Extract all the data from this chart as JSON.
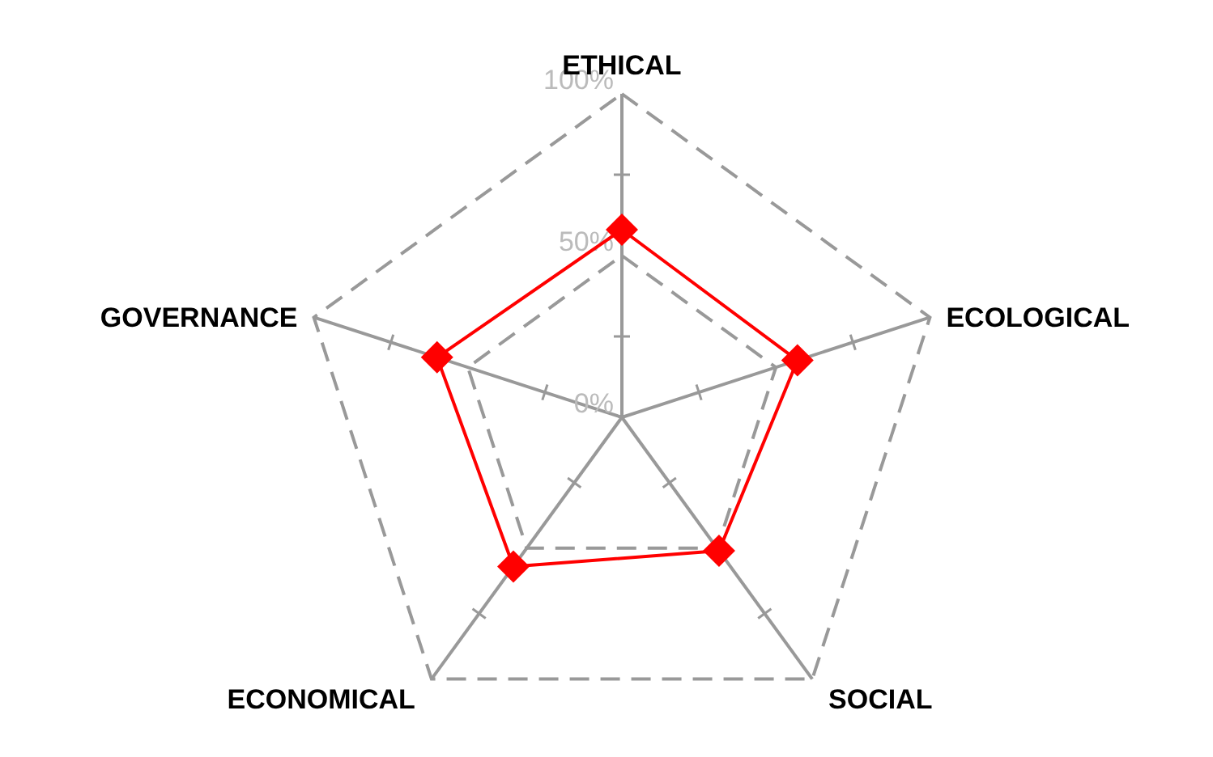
{
  "chart_data": {
    "type": "radar",
    "categories": [
      "ETHICAL",
      "ECOLOGICAL",
      "SOCIAL",
      "ECONOMICAL",
      "GOVERNANCE"
    ],
    "series": [
      {
        "color": "#ff0000",
        "values": [
          58,
          57,
          51,
          57,
          60
        ]
      }
    ],
    "ylim": [
      0,
      100
    ],
    "yticks": [
      {
        "value": 0,
        "label": "0%"
      },
      {
        "value": 50,
        "label": "50%"
      },
      {
        "value": 100,
        "label": "100%"
      }
    ],
    "grid": true,
    "marker": "diamond",
    "line_style": "solid"
  }
}
